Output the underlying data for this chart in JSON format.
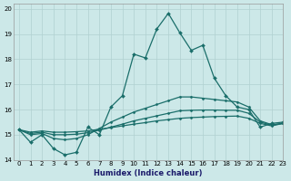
{
  "xlabel": "Humidex (Indice chaleur)",
  "xlim": [
    -0.5,
    23
  ],
  "ylim": [
    14,
    20.2
  ],
  "background_color": "#cce8e8",
  "grid_color": "#b0d0d0",
  "line_color": "#1a6e6a",
  "line1_x": [
    0,
    1,
    2,
    3,
    4,
    5,
    6,
    7,
    8,
    9,
    10,
    11,
    12,
    13,
    14,
    15,
    16,
    17,
    18,
    19,
    20,
    21,
    22,
    23
  ],
  "line1_y": [
    15.2,
    14.7,
    15.0,
    14.45,
    14.2,
    14.3,
    15.3,
    15.0,
    16.1,
    16.55,
    18.2,
    18.05,
    19.2,
    19.82,
    19.05,
    18.35,
    18.55,
    17.25,
    16.55,
    16.1,
    16.0,
    15.3,
    15.45,
    15.5
  ],
  "line2_x": [
    0,
    1,
    2,
    3,
    4,
    5,
    6,
    7,
    8,
    9,
    10,
    11,
    12,
    13,
    14,
    15,
    16,
    17,
    18,
    19,
    20,
    21,
    22,
    23
  ],
  "line2_y": [
    15.2,
    15.0,
    15.05,
    14.85,
    14.8,
    14.85,
    15.0,
    15.25,
    15.5,
    15.7,
    15.9,
    16.05,
    16.2,
    16.35,
    16.5,
    16.5,
    16.45,
    16.4,
    16.35,
    16.3,
    16.1,
    15.55,
    15.4,
    15.45
  ],
  "line3_x": [
    0,
    1,
    2,
    3,
    4,
    5,
    6,
    7,
    8,
    9,
    10,
    11,
    12,
    13,
    14,
    15,
    16,
    17,
    18,
    19,
    20,
    21,
    22,
    23
  ],
  "line3_y": [
    15.2,
    15.05,
    15.1,
    15.0,
    15.0,
    15.02,
    15.08,
    15.18,
    15.3,
    15.42,
    15.55,
    15.65,
    15.75,
    15.85,
    15.95,
    15.97,
    15.98,
    15.98,
    15.97,
    15.97,
    15.85,
    15.5,
    15.38,
    15.45
  ],
  "line4_x": [
    0,
    1,
    2,
    3,
    4,
    5,
    6,
    7,
    8,
    9,
    10,
    11,
    12,
    13,
    14,
    15,
    16,
    17,
    18,
    19,
    20,
    21,
    22,
    23
  ],
  "line4_y": [
    15.2,
    15.1,
    15.15,
    15.1,
    15.1,
    15.12,
    15.15,
    15.22,
    15.28,
    15.35,
    15.42,
    15.48,
    15.55,
    15.6,
    15.65,
    15.68,
    15.7,
    15.72,
    15.73,
    15.74,
    15.65,
    15.45,
    15.35,
    15.45
  ]
}
